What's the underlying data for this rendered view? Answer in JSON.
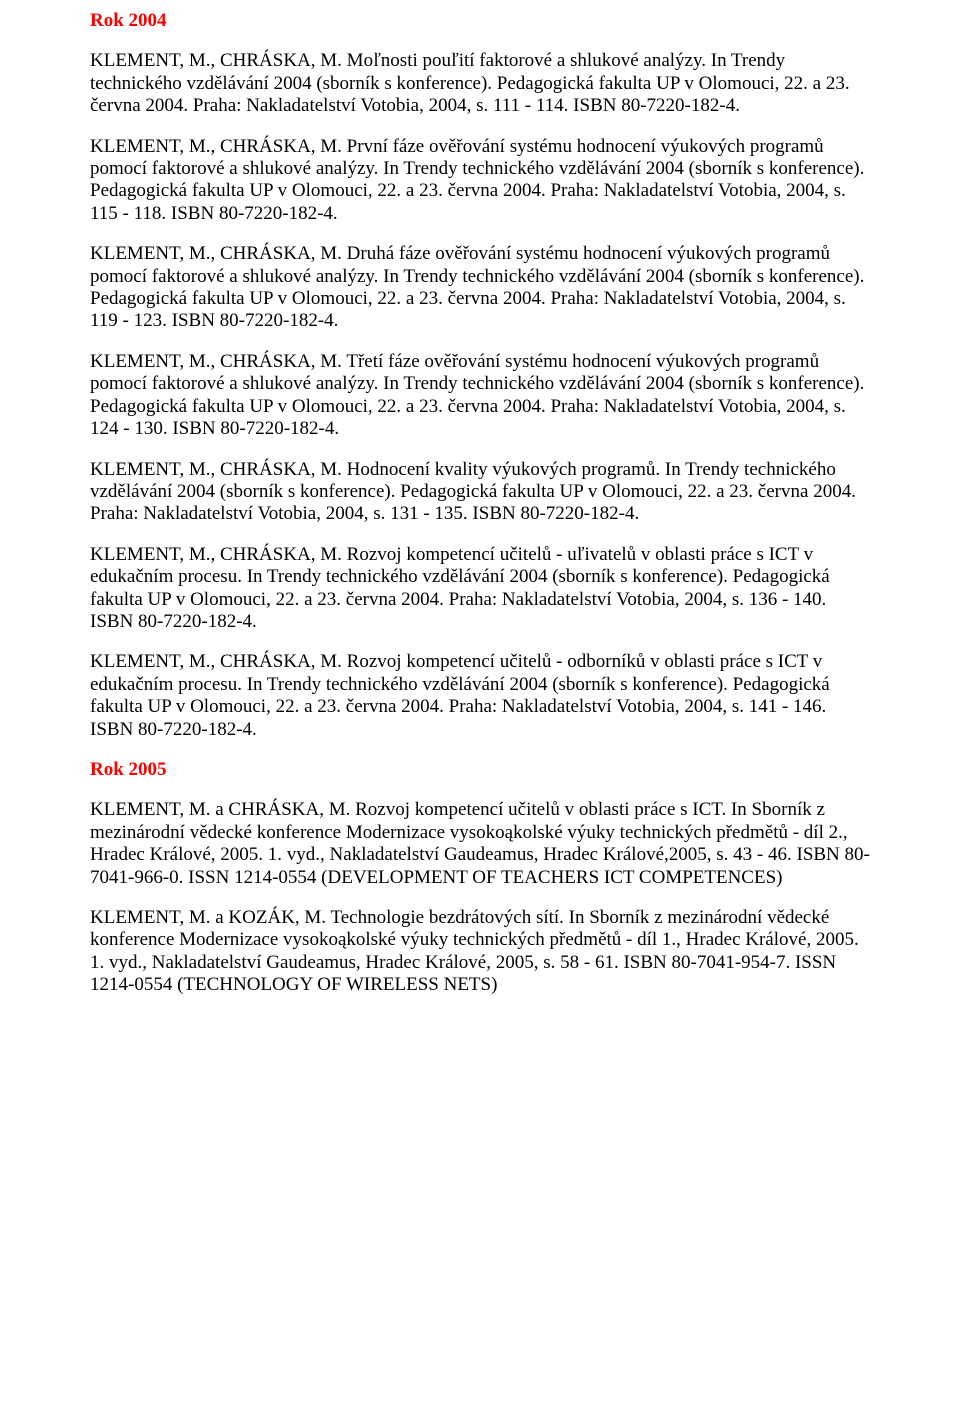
{
  "doc": {
    "heading_color": "#ff0000",
    "body_color": "#000000",
    "background_color": "#ffffff",
    "font_family": "Times New Roman",
    "font_size_pt": 14,
    "h1": "Rok 2004",
    "p1": "KLEMENT, M., CHRÁSKA, M. Moľnosti pouľití faktorové a shlukové analýzy. In Trendy technického vzdělávání 2004 (sborník s konference). Pedagogická fakulta UP v Olomouci, 22. a 23. června 2004. Praha: Nakladatelství Votobia, 2004, s. 111 - 114. ISBN 80-7220-182-4.",
    "p2": "KLEMENT, M., CHRÁSKA, M. První fáze ověřování systému hodnocení výukových programů pomocí faktorové a shlukové analýzy. In Trendy technického vzdělávání 2004 (sborník s konference). Pedagogická fakulta UP v Olomouci, 22. a 23. června 2004. Praha: Nakladatelství Votobia, 2004, s. 115 - 118. ISBN 80-7220-182-4.",
    "p3": "KLEMENT, M., CHRÁSKA, M. Druhá fáze ověřování systému hodnocení výukových programů pomocí faktorové a shlukové analýzy. In Trendy technického vzdělávání 2004 (sborník s konference). Pedagogická fakulta UP v Olomouci, 22. a 23. června 2004. Praha: Nakladatelství Votobia, 2004, s. 119 - 123. ISBN 80-7220-182-4.",
    "p4": "KLEMENT, M., CHRÁSKA, M. Třetí fáze ověřování systému hodnocení výukových programů pomocí faktorové a shlukové analýzy. In Trendy technického vzdělávání 2004 (sborník s konference). Pedagogická fakulta UP v Olomouci, 22. a 23. června 2004. Praha: Nakladatelství Votobia, 2004, s. 124 - 130. ISBN 80-7220-182-4.",
    "p5": "KLEMENT, M., CHRÁSKA, M. Hodnocení kvality výukových programů. In Trendy technického vzdělávání 2004 (sborník s konference). Pedagogická fakulta UP v Olomouci, 22. a 23. června 2004. Praha: Nakladatelství Votobia, 2004, s. 131 - 135. ISBN 80-7220-182-4.",
    "p6": "KLEMENT, M., CHRÁSKA, M. Rozvoj kompetencí učitelů - uľivatelů v oblasti práce s ICT v edukačním procesu. In Trendy technického vzdělávání 2004 (sborník s konference). Pedagogická fakulta UP v Olomouci, 22. a 23. června 2004. Praha: Nakladatelství Votobia, 2004, s. 136 - 140. ISBN 80-7220-182-4.",
    "p7": "KLEMENT, M., CHRÁSKA, M. Rozvoj kompetencí učitelů - odborníků v oblasti práce s ICT v edukačním procesu. In Trendy technického vzdělávání 2004 (sborník s konference). Pedagogická fakulta UP v Olomouci, 22. a 23. června 2004. Praha: Nakladatelství Votobia, 2004, s. 141 - 146. ISBN 80-7220-182-4.",
    "h2": "Rok 2005",
    "p8": "KLEMENT, M. a CHRÁSKA, M. Rozvoj kompetencí učitelů v oblasti práce s ICT. In Sborník z mezinárodní vědecké konference Modernizace vysokoąkolské výuky technických předmětů - díl 2., Hradec Králové, 2005. 1. vyd., Nakladatelství Gaudeamus, Hradec Králové,2005, s. 43 - 46. ISBN 80-7041-966-0. ISSN 1214-0554 (DEVELOPMENT OF TEACHERS ICT COMPETENCES)",
    "p9": "KLEMENT, M. a KOZÁK, M. Technologie bezdrátových sítí. In Sborník z mezinárodní vědecké konference Modernizace vysokoąkolské výuky technických předmětů - díl 1., Hradec Králové, 2005. 1. vyd., Nakladatelství Gaudeamus, Hradec Králové, 2005, s. 58 - 61. ISBN 80-7041-954-7. ISSN 1214-0554 (TECHNOLOGY OF WIRELESS NETS)"
  }
}
